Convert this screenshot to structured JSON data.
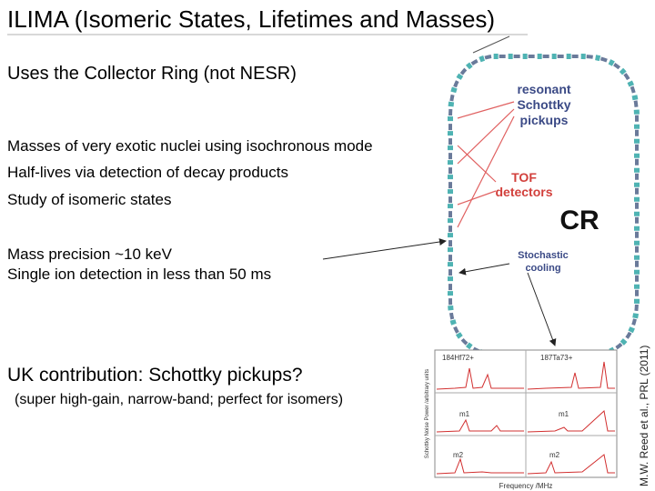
{
  "title": "ILIMA (Isomeric States, Lifetimes and Masses)",
  "subtitle": "Uses the  Collector Ring (not NESR)",
  "bullets": [
    "Masses of very exotic nuclei using isochronous mode",
    "Half-lives via detection of decay products",
    "Study of isomeric states"
  ],
  "performance": [
    "Mass precision ~10 keV",
    "Single ion detection in less than 50 ms"
  ],
  "uk": {
    "heading": "UK contribution: Schottky pickups?",
    "note": "(super high-gain, narrow-band; perfect for isomers)"
  },
  "diagram": {
    "pickups": [
      "resonant",
      "Schottky",
      "pickups"
    ],
    "tof": [
      "TOF",
      "detectors"
    ],
    "ring": "CR",
    "cooling": [
      "Stochastic",
      "cooling"
    ]
  },
  "spectrum": {
    "ion1": "184Hf72+",
    "ion2": "187Ta73+",
    "iso1": "m1",
    "iso2": "m2",
    "xlabel": "Frequency /MHz",
    "ylabel": "Schottky Noise Power /arbitrary units"
  },
  "citation": "M.W. Reed et al., PRL (2011)"
}
